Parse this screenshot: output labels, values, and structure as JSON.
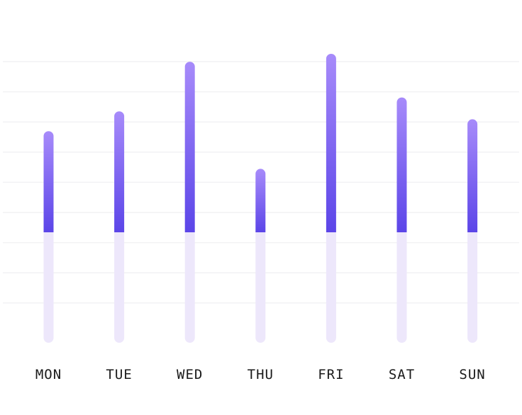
{
  "chart_data": {
    "type": "bar",
    "categories": [
      "MON",
      "TUE",
      "WED",
      "THU",
      "FRI",
      "SAT",
      "SUN"
    ],
    "values": [
      0.51,
      0.61,
      0.86,
      0.32,
      0.9,
      0.68,
      0.57
    ],
    "baseline_level": 0.0,
    "grid": true,
    "colors": {
      "bar_top": "#a78bfa",
      "bar_bottom": "#5b45e8",
      "track": "#ede7fb",
      "grid": "#f2f2f4",
      "label": "#1a1a1a"
    }
  }
}
